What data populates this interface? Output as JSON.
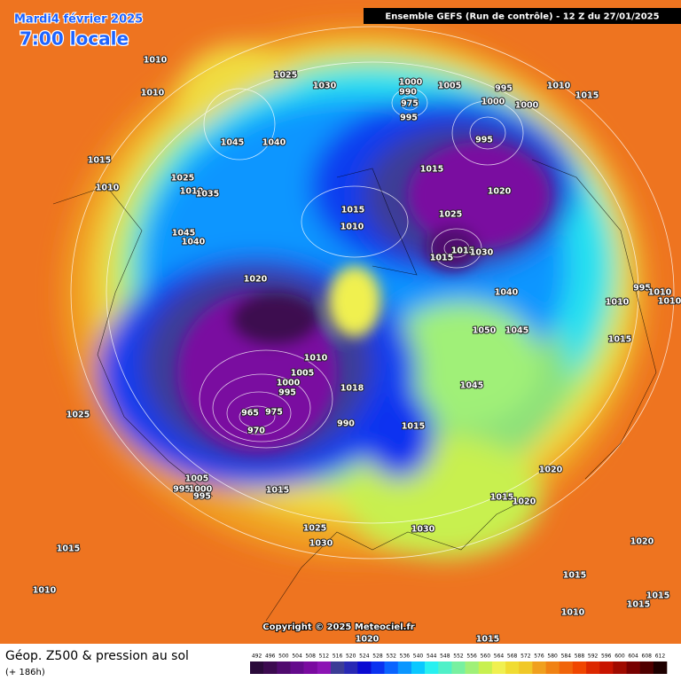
{
  "header": {
    "date": "Mardi4 février 2025",
    "time": "7:00 locale",
    "model": "Ensemble GEFS  (Run de contrôle)  -  12 Z du 27/01/2025"
  },
  "map": {
    "pressure_labels": [
      "1010",
      "1010",
      "1025",
      "1030",
      "1000",
      "990",
      "975",
      "995",
      "1005",
      "995",
      "1010",
      "1015",
      "1000",
      "1000",
      "995",
      "1045",
      "1040",
      "1015",
      "1010",
      "1025",
      "1015",
      "1020",
      "1010",
      "1035",
      "1015",
      "1010",
      "1025",
      "1045",
      "1040",
      "1015",
      "1015",
      "1030",
      "1020",
      "1040",
      "1010",
      "995",
      "1010",
      "1010",
      "1050",
      "1045",
      "1015",
      "1010",
      "1005",
      "1000",
      "995",
      "1018",
      "1045",
      "965",
      "975",
      "970",
      "990",
      "1015",
      "1025",
      "1020",
      "1005",
      "995",
      "1000",
      "995",
      "1015",
      "1015",
      "1020",
      "1025",
      "1030",
      "1030",
      "1015",
      "1020",
      "1015",
      "1010",
      "1015",
      "1015",
      "1010",
      "1020",
      "1015"
    ]
  },
  "copyright": "Copyright © 2025 Meteociel.fr",
  "footer": {
    "title": "Géop. Z500 & pression au sol",
    "lead": "(+ 186h)"
  },
  "colorbar": {
    "ticks": [
      492,
      496,
      500,
      504,
      508,
      512,
      516,
      520,
      524,
      528,
      532,
      536,
      540,
      544,
      548,
      552,
      556,
      560,
      564,
      568,
      572,
      576,
      580,
      584,
      588,
      592,
      596,
      600,
      604,
      608,
      612
    ],
    "colors": [
      "#2a0a3a",
      "#3c0a50",
      "#500a6e",
      "#640a8c",
      "#7a0aa0",
      "#8c14b4",
      "#3c3c96",
      "#2828b4",
      "#0a0ad2",
      "#0a32f0",
      "#0a64ff",
      "#0a96ff",
      "#0ac8ff",
      "#28f0f0",
      "#50f0c8",
      "#78f0a0",
      "#a0f078",
      "#c8f050",
      "#f0f050",
      "#f0dc32",
      "#f0c828",
      "#f0a01e",
      "#f08214",
      "#f0640a",
      "#f04600",
      "#dc2800",
      "#c81400",
      "#a00a00",
      "#780000",
      "#500000",
      "#1e0000"
    ]
  }
}
